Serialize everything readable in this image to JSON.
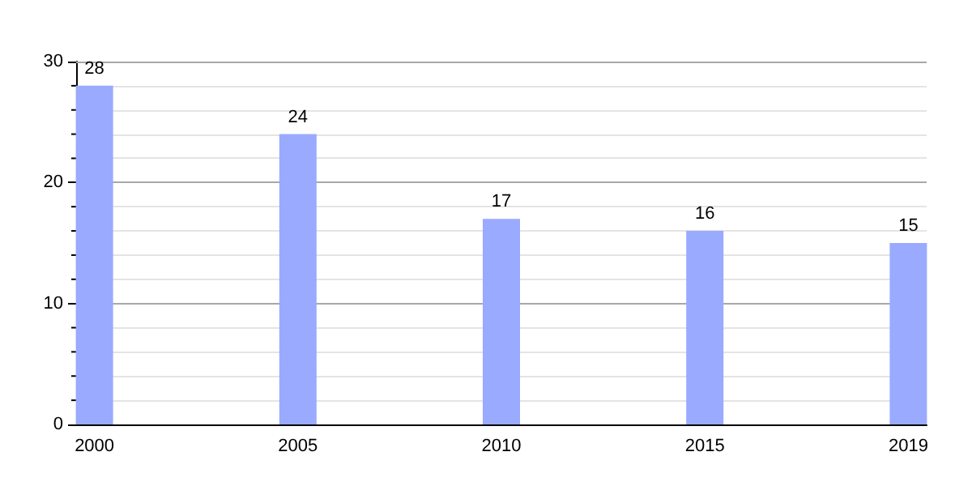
{
  "chart_data": {
    "type": "bar",
    "categories": [
      "2000",
      "2005",
      "2010",
      "2015",
      "2019"
    ],
    "values": [
      28,
      24,
      17,
      16,
      15
    ],
    "color": "#99aaff",
    "data_labels": true,
    "grid": true,
    "ylim": [
      0,
      30
    ],
    "yticks": [
      0,
      {
        "value": 2,
        "label": null
      },
      {
        "value": 4,
        "label": null
      },
      {
        "value": 6,
        "label": null
      },
      {
        "value": 8,
        "label": null
      },
      10,
      {
        "value": 12,
        "label": null
      },
      {
        "value": 14,
        "label": null
      },
      {
        "value": 16,
        "label": null
      },
      {
        "value": 18,
        "label": null
      },
      20,
      {
        "value": 22,
        "label": null
      },
      {
        "value": 24,
        "label": null
      },
      {
        "value": 26,
        "label": null
      },
      {
        "value": 28,
        "label": null
      },
      30
    ]
  }
}
